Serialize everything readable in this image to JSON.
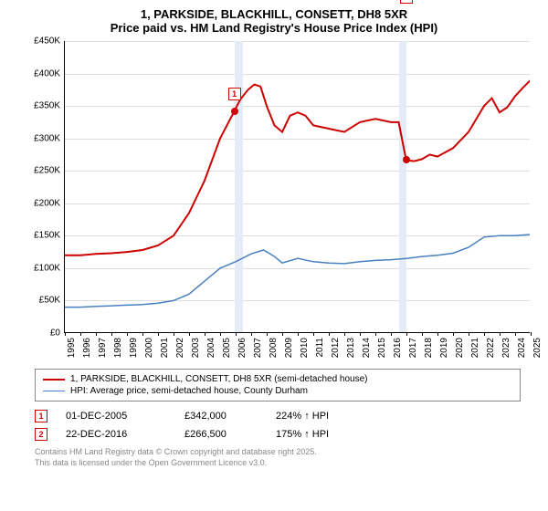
{
  "title": "1, PARKSIDE, BLACKHILL, CONSETT, DH8 5XR",
  "subtitle": "Price paid vs. HM Land Registry's House Price Index (HPI)",
  "chart": {
    "type": "line",
    "background_color": "#ffffff",
    "grid_color": "#dddddd",
    "axis_color": "#000000",
    "label_fontsize": 10,
    "title_fontsize": 13,
    "x_range": [
      1995,
      2025
    ],
    "y_range": [
      0,
      450000
    ],
    "y_ticks": [
      0,
      50000,
      100000,
      150000,
      200000,
      250000,
      300000,
      350000,
      400000,
      450000
    ],
    "y_tick_labels": [
      "£0",
      "£50K",
      "£100K",
      "£150K",
      "£200K",
      "£250K",
      "£300K",
      "£350K",
      "£400K",
      "£450K"
    ],
    "x_ticks": [
      1995,
      1996,
      1997,
      1998,
      1999,
      2000,
      2001,
      2002,
      2003,
      2004,
      2005,
      2006,
      2007,
      2008,
      2009,
      2010,
      2011,
      2012,
      2013,
      2014,
      2015,
      2016,
      2017,
      2018,
      2019,
      2020,
      2021,
      2022,
      2023,
      2024,
      2025
    ],
    "highlight_bands": [
      {
        "from": 2005.92,
        "to": 2006.5,
        "color": "#e6ecf5"
      },
      {
        "from": 2016.5,
        "to": 2016.98,
        "color": "#e6ecf5"
      }
    ],
    "series": [
      {
        "name": "price_paid",
        "label": "1, PARKSIDE, BLACKHILL, CONSETT, DH8 5XR (semi-detached house)",
        "color": "#cc0000",
        "line_width": 2,
        "data": [
          [
            1995,
            120000
          ],
          [
            1996,
            120000
          ],
          [
            1997,
            122000
          ],
          [
            1998,
            123000
          ],
          [
            1999,
            125000
          ],
          [
            2000,
            128000
          ],
          [
            2001,
            135000
          ],
          [
            2002,
            150000
          ],
          [
            2003,
            185000
          ],
          [
            2004,
            235000
          ],
          [
            2005,
            300000
          ],
          [
            2005.92,
            342000
          ],
          [
            2006.3,
            360000
          ],
          [
            2006.8,
            375000
          ],
          [
            2007.2,
            383000
          ],
          [
            2007.6,
            380000
          ],
          [
            2008,
            350000
          ],
          [
            2008.5,
            320000
          ],
          [
            2009,
            310000
          ],
          [
            2009.5,
            335000
          ],
          [
            2010,
            340000
          ],
          [
            2010.5,
            335000
          ],
          [
            2011,
            320000
          ],
          [
            2012,
            315000
          ],
          [
            2013,
            310000
          ],
          [
            2014,
            325000
          ],
          [
            2015,
            330000
          ],
          [
            2016,
            325000
          ],
          [
            2016.5,
            325000
          ],
          [
            2016.98,
            266500
          ],
          [
            2017.5,
            265000
          ],
          [
            2018,
            268000
          ],
          [
            2018.5,
            275000
          ],
          [
            2019,
            272000
          ],
          [
            2020,
            285000
          ],
          [
            2021,
            310000
          ],
          [
            2022,
            350000
          ],
          [
            2022.5,
            362000
          ],
          [
            2023,
            340000
          ],
          [
            2023.5,
            348000
          ],
          [
            2024,
            365000
          ],
          [
            2024.5,
            378000
          ],
          [
            2025,
            390000
          ]
        ]
      },
      {
        "name": "hpi",
        "label": "HPI: Average price, semi-detached house, County Durham",
        "color": "#4a7fc1",
        "line_width": 1.5,
        "data": [
          [
            1995,
            40000
          ],
          [
            1996,
            40000
          ],
          [
            1997,
            41000
          ],
          [
            1998,
            42000
          ],
          [
            1999,
            43000
          ],
          [
            2000,
            44000
          ],
          [
            2001,
            46000
          ],
          [
            2002,
            50000
          ],
          [
            2003,
            60000
          ],
          [
            2004,
            80000
          ],
          [
            2005,
            100000
          ],
          [
            2006,
            110000
          ],
          [
            2007,
            122000
          ],
          [
            2007.8,
            128000
          ],
          [
            2008.5,
            118000
          ],
          [
            2009,
            108000
          ],
          [
            2010,
            115000
          ],
          [
            2011,
            110000
          ],
          [
            2012,
            108000
          ],
          [
            2013,
            107000
          ],
          [
            2014,
            110000
          ],
          [
            2015,
            112000
          ],
          [
            2016,
            113000
          ],
          [
            2017,
            115000
          ],
          [
            2018,
            118000
          ],
          [
            2019,
            120000
          ],
          [
            2020,
            123000
          ],
          [
            2021,
            132000
          ],
          [
            2022,
            148000
          ],
          [
            2023,
            150000
          ],
          [
            2024,
            150000
          ],
          [
            2025,
            152000
          ]
        ]
      }
    ],
    "markers": [
      {
        "id": "1",
        "x": 2005.92,
        "y": 342000,
        "box_y_offset": -26
      },
      {
        "id": "2",
        "x": 2016.98,
        "y": 266500,
        "box_y_offset": -186
      }
    ]
  },
  "legend": {
    "items": [
      {
        "label": "1, PARKSIDE, BLACKHILL, CONSETT, DH8 5XR (semi-detached house)",
        "color": "#cc0000",
        "width": 2
      },
      {
        "label": "HPI: Average price, semi-detached house, County Durham",
        "color": "#4a7fc1",
        "width": 1.5
      }
    ]
  },
  "transactions": [
    {
      "marker": "1",
      "date": "01-DEC-2005",
      "price": "£342,000",
      "pct": "224% ↑ HPI"
    },
    {
      "marker": "2",
      "date": "22-DEC-2016",
      "price": "£266,500",
      "pct": "175% ↑ HPI"
    }
  ],
  "footer_line1": "Contains HM Land Registry data © Crown copyright and database right 2025.",
  "footer_line2": "This data is licensed under the Open Government Licence v3.0."
}
